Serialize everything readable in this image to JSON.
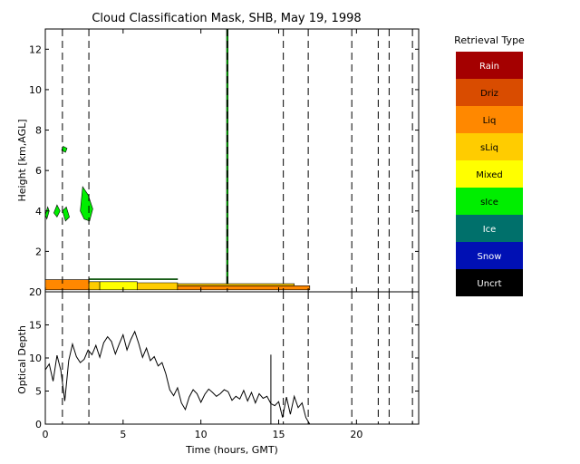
{
  "title": "Cloud Classification Mask, SHB, May 19, 1998",
  "legend": {
    "title": "Retrieval Type",
    "items": [
      {
        "label": "Rain",
        "color": "#a40000"
      },
      {
        "label": "Driz",
        "color": "#d94c00"
      },
      {
        "label": "Liq",
        "color": "#ff8800"
      },
      {
        "label": "sLiq",
        "color": "#ffcc00"
      },
      {
        "label": "Mixed",
        "color": "#ffff00"
      },
      {
        "label": "sIce",
        "color": "#00ee00"
      },
      {
        "label": "Ice",
        "color": "#00706b"
      },
      {
        "label": "Snow",
        "color": "#0010b4"
      },
      {
        "label": "Uncrt",
        "color": "#000000"
      }
    ]
  },
  "chart_data": [
    {
      "type": "heatmap",
      "ylabel": "Height [km,AGL]",
      "xlim": [
        0,
        24
      ],
      "ylim": [
        0,
        13
      ],
      "x_ticks": [
        0,
        5,
        10,
        15,
        20
      ],
      "y_ticks": [
        2,
        4,
        6,
        8,
        10,
        12
      ],
      "dashed_lines_x": [
        1.1,
        2.8,
        11.7,
        15.3,
        16.9,
        19.7,
        21.4,
        22.1,
        23.6
      ],
      "regions": [
        {
          "class": "sIce",
          "color": "#00ee00",
          "polygon": [
            [
              0.0,
              3.8
            ],
            [
              0.15,
              4.2
            ],
            [
              0.25,
              4.0
            ],
            [
              0.1,
              3.6
            ]
          ]
        },
        {
          "class": "sIce",
          "color": "#00ee00",
          "polygon": [
            [
              0.55,
              3.9
            ],
            [
              0.75,
              4.3
            ],
            [
              0.95,
              4.0
            ],
            [
              0.75,
              3.7
            ]
          ]
        },
        {
          "class": "sIce",
          "color": "#00ee00",
          "polygon": [
            [
              1.1,
              4.0
            ],
            [
              1.35,
              4.2
            ],
            [
              1.55,
              3.7
            ],
            [
              1.3,
              3.5
            ]
          ]
        },
        {
          "class": "sIce",
          "color": "#00ee00",
          "polygon": [
            [
              2.25,
              4.0
            ],
            [
              2.4,
              5.2
            ],
            [
              2.75,
              4.8
            ],
            [
              3.05,
              4.1
            ],
            [
              2.85,
              3.5
            ],
            [
              2.5,
              3.6
            ]
          ]
        },
        {
          "class": "sIce",
          "color": "#00ee00",
          "polygon": [
            [
              1.05,
              7.0
            ],
            [
              1.15,
              7.2
            ],
            [
              1.4,
              7.1
            ],
            [
              1.3,
              6.9
            ]
          ]
        },
        {
          "class": "Liq",
          "color": "#ff8800",
          "polygon": [
            [
              0.0,
              0.1
            ],
            [
              0.0,
              0.6
            ],
            [
              2.8,
              0.6
            ],
            [
              2.8,
              0.1
            ]
          ]
        },
        {
          "class": "sLiq",
          "color": "#ffcc00",
          "polygon": [
            [
              2.8,
              0.1
            ],
            [
              2.8,
              0.5
            ],
            [
              3.5,
              0.5
            ],
            [
              3.5,
              0.1
            ]
          ]
        },
        {
          "class": "Mixed",
          "color": "#ffff00",
          "polygon": [
            [
              3.5,
              0.1
            ],
            [
              3.5,
              0.5
            ],
            [
              5.9,
              0.5
            ],
            [
              5.9,
              0.1
            ]
          ]
        },
        {
          "class": "sLiq",
          "color": "#ffcc00",
          "polygon": [
            [
              5.9,
              0.1
            ],
            [
              5.9,
              0.45
            ],
            [
              8.5,
              0.45
            ],
            [
              8.5,
              0.1
            ]
          ]
        },
        {
          "class": "Liq",
          "color": "#ff8800",
          "polygon": [
            [
              8.5,
              0.1
            ],
            [
              8.5,
              0.3
            ],
            [
              17.0,
              0.3
            ],
            [
              17.0,
              0.1
            ]
          ]
        },
        {
          "class": "sLiq",
          "color": "#ffcc00",
          "polygon": [
            [
              8.5,
              0.3
            ],
            [
              8.5,
              0.4
            ],
            [
              16.0,
              0.4
            ],
            [
              16.0,
              0.3
            ]
          ]
        },
        {
          "class": "sIce",
          "color": "#00ee00",
          "polygon": [
            [
              2.8,
              0.6
            ],
            [
              2.8,
              0.65
            ],
            [
              8.5,
              0.65
            ],
            [
              8.5,
              0.6
            ]
          ]
        },
        {
          "class": "sIce",
          "color": "#00ee00",
          "polygon": [
            [
              11.65,
              0.4
            ],
            [
              11.65,
              13.0
            ],
            [
              11.75,
              13.0
            ],
            [
              11.75,
              0.4
            ]
          ]
        }
      ]
    },
    {
      "type": "line",
      "xlabel": "Time (hours, GMT)",
      "ylabel": "Optical Depth",
      "xlim": [
        0,
        24
      ],
      "ylim": [
        0,
        20
      ],
      "x_ticks": [
        0,
        5,
        10,
        15,
        20
      ],
      "y_ticks": [
        0,
        5,
        10,
        15,
        20
      ],
      "x": [
        0.0,
        0.25,
        0.5,
        0.75,
        1.0,
        1.25,
        1.5,
        1.75,
        2.0,
        2.25,
        2.5,
        2.75,
        3.0,
        3.25,
        3.5,
        3.75,
        4.0,
        4.25,
        4.5,
        4.75,
        5.0,
        5.25,
        5.5,
        5.75,
        6.0,
        6.25,
        6.5,
        6.75,
        7.0,
        7.25,
        7.5,
        7.75,
        8.0,
        8.25,
        8.5,
        8.75,
        9.0,
        9.25,
        9.5,
        9.75,
        10.0,
        10.25,
        10.5,
        10.75,
        11.0,
        11.25,
        11.5,
        11.75,
        12.0,
        12.25,
        12.5,
        12.75,
        13.0,
        13.25,
        13.5,
        13.75,
        14.0,
        14.25,
        14.5,
        14.75,
        15.0,
        15.25,
        15.5,
        15.75,
        16.0,
        16.25,
        16.5,
        16.75,
        17.0
      ],
      "values": [
        8.2,
        9.1,
        6.5,
        10.4,
        8.1,
        3.5,
        9.6,
        12.1,
        10.2,
        9.3,
        9.8,
        11.2,
        10.5,
        11.9,
        10.1,
        12.3,
        13.2,
        12.5,
        10.6,
        12.1,
        13.5,
        11.2,
        12.8,
        14.0,
        12.2,
        10.1,
        11.5,
        9.6,
        10.2,
        8.8,
        9.3,
        7.6,
        5.2,
        4.3,
        5.5,
        3.2,
        2.2,
        4.1,
        5.2,
        4.6,
        3.3,
        4.5,
        5.3,
        4.8,
        4.2,
        4.6,
        5.2,
        4.9,
        3.6,
        4.2,
        3.8,
        5.1,
        3.5,
        4.8,
        3.2,
        4.6,
        3.9,
        4.2,
        3.1,
        2.8,
        3.4,
        1.0,
        4.1,
        1.5,
        4.2,
        2.5,
        3.2,
        1.0,
        0.0
      ],
      "spikes": [
        {
          "x": 14.5,
          "y": 10.5
        },
        {
          "x": 23.6,
          "y": 0.5
        }
      ],
      "dashed_lines_x": [
        1.1,
        2.8,
        15.3,
        16.9,
        19.7,
        21.4,
        22.1,
        23.6
      ]
    }
  ]
}
